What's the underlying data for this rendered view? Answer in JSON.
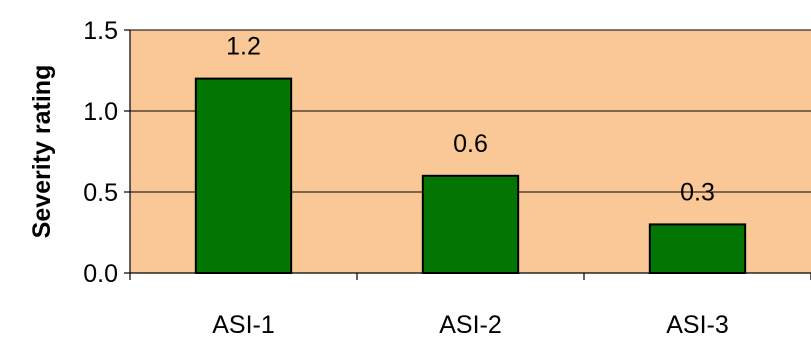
{
  "chart_data": {
    "type": "bar",
    "categories": [
      "ASI-1",
      "ASI-2",
      "ASI-3"
    ],
    "values": [
      1.2,
      0.6,
      0.3
    ],
    "data_labels": [
      "1.2",
      "0.6",
      "0.3"
    ],
    "ylabel": "Severity rating",
    "xlabel": "",
    "ylim": [
      0,
      1.5
    ],
    "yticks": [
      0.0,
      0.5,
      1.0,
      1.5
    ],
    "ytick_labels": [
      "0.0",
      "0.5",
      "1.0",
      "1.5"
    ],
    "grid": true,
    "legend": "none",
    "colors": {
      "plot_background": "#FAC896",
      "bar_fill": "#037503",
      "bar_stroke": "#000000",
      "gridline": "#000000",
      "text": "#000000"
    }
  }
}
